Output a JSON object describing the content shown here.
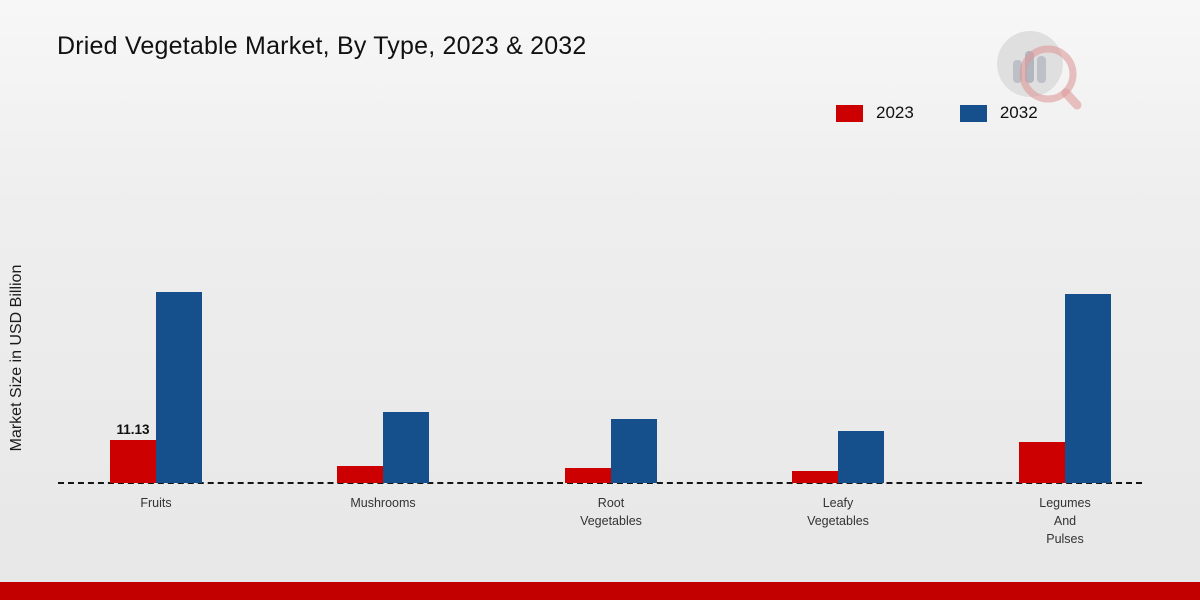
{
  "title": "Dried Vegetable Market, By Type, 2023 & 2032",
  "y_axis_label": "Market Size in USD Billion",
  "legend": [
    {
      "label": "2023",
      "color": "#cc0000"
    },
    {
      "label": "2032",
      "color": "#15508d"
    }
  ],
  "category_label_lines": [
    [
      "Fruits"
    ],
    [
      "Mushrooms"
    ],
    [
      "Root",
      "Vegetables"
    ],
    [
      "Leafy",
      "Vegetables"
    ],
    [
      "Legumes",
      "And",
      "Pulses"
    ]
  ],
  "chart_data": {
    "type": "bar",
    "title": "Dried Vegetable Market, By Type, 2023 & 2032",
    "xlabel": "",
    "ylabel": "Market Size in USD Billion",
    "categories": [
      "Fruits",
      "Mushrooms",
      "Root Vegetables",
      "Leafy Vegetables",
      "Legumes And Pulses"
    ],
    "series": [
      {
        "name": "2023",
        "color": "#cc0000",
        "values": [
          11.13,
          4.5,
          4.0,
          3.2,
          10.5
        ]
      },
      {
        "name": "2032",
        "color": "#15508d",
        "values": [
          49.5,
          18.5,
          16.5,
          13.5,
          49.0
        ]
      }
    ],
    "ylim": [
      0,
      55
    ],
    "grid": false,
    "legend_position": "top-right",
    "baseline_style": "dashed",
    "data_labels": [
      {
        "series": "2023",
        "category": "Fruits",
        "text": "11.13"
      }
    ]
  },
  "colors": {
    "bar_2023": "#cc0000",
    "bar_2032": "#15508d",
    "footer_bar": "#c30000",
    "background_top": "#f7f7f7",
    "background_bottom": "#e7e7e7"
  }
}
